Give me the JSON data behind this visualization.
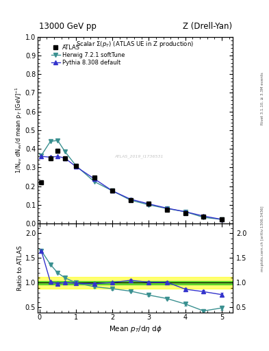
{
  "title_top": "13000 GeV pp",
  "title_right": "Z (Drell-Yan)",
  "main_title": "Scalar $\\Sigma(p_T)$ (ATLAS UE in Z production)",
  "ylabel_main": "1/N$_{ev}$ dN$_{ev}$/d mean p$_T$ [GeV]$^{-1}$",
  "ylabel_ratio": "Ratio to ATLAS",
  "xlabel": "Mean $p_T$/d$\\eta$ d$\\phi$",
  "right_label_top": "Rivet 3.1.10, ≥ 3.3M events",
  "right_label_bottom": "mcplots.cern.ch [arXiv:1306.3436]",
  "watermark": "ATLAS_2019_I1736531",
  "atlas_x": [
    0.05,
    0.3,
    0.5,
    0.7,
    1.0,
    1.5,
    2.0,
    2.5,
    3.0,
    3.5,
    4.0,
    4.5,
    5.0
  ],
  "atlas_y": [
    0.22,
    0.35,
    0.39,
    0.35,
    0.31,
    0.245,
    0.175,
    0.125,
    0.105,
    0.075,
    0.055,
    0.038,
    0.022
  ],
  "atlas_yerr": [
    0.01,
    0.01,
    0.01,
    0.01,
    0.01,
    0.008,
    0.007,
    0.006,
    0.005,
    0.004,
    0.003,
    0.003,
    0.002
  ],
  "herwig_x": [
    0.05,
    0.3,
    0.5,
    0.7,
    1.0,
    1.5,
    2.0,
    2.5,
    3.0,
    3.5,
    4.0,
    4.5,
    5.0
  ],
  "herwig_y": [
    0.365,
    0.44,
    0.445,
    0.385,
    0.31,
    0.225,
    0.175,
    0.125,
    0.1,
    0.08,
    0.063,
    0.033,
    0.022
  ],
  "herwig_color": "#3a9090",
  "pythia_x": [
    0.05,
    0.3,
    0.5,
    0.7,
    1.0,
    1.5,
    2.0,
    2.5,
    3.0,
    3.5,
    4.0,
    4.5,
    5.0
  ],
  "pythia_y": [
    0.36,
    0.355,
    0.36,
    0.35,
    0.305,
    0.24,
    0.175,
    0.13,
    0.105,
    0.082,
    0.063,
    0.04,
    0.022
  ],
  "pythia_color": "#3333cc",
  "herwig_ratio": [
    1.65,
    1.37,
    1.2,
    1.1,
    1.0,
    0.92,
    0.88,
    0.83,
    0.75,
    0.68,
    0.57,
    0.43,
    0.49
  ],
  "pythia_ratio": [
    1.65,
    1.015,
    0.985,
    1.005,
    0.99,
    0.98,
    1.005,
    1.05,
    1.01,
    1.01,
    0.87,
    0.82,
    0.76
  ],
  "herwig_ratio_err": [
    0.03,
    0.02,
    0.02,
    0.02,
    0.02,
    0.02,
    0.02,
    0.02,
    0.02,
    0.02,
    0.03,
    0.04,
    0.04
  ],
  "pythia_ratio_err": [
    0.03,
    0.02,
    0.02,
    0.02,
    0.02,
    0.02,
    0.02,
    0.02,
    0.02,
    0.02,
    0.03,
    0.03,
    0.04
  ],
  "band_green_low": 0.96,
  "band_green_high": 1.04,
  "band_yellow_low": 0.88,
  "band_yellow_high": 1.12,
  "main_ylim": [
    0.0,
    1.0
  ],
  "main_yticks": [
    0.0,
    0.1,
    0.2,
    0.3,
    0.4,
    0.5,
    0.6,
    0.7,
    0.8,
    0.9,
    1.0
  ],
  "ratio_ylim": [
    0.4,
    2.2
  ],
  "ratio_yticks": [
    0.5,
    1.0,
    1.5,
    2.0
  ],
  "xlim": [
    -0.05,
    5.3
  ],
  "xticks": [
    0,
    1,
    2,
    3,
    4,
    5
  ],
  "atlas_color": "#000000",
  "legend_entries": [
    "ATLAS",
    "Herwig 7.2.1 softTune",
    "Pythia 8.308 default"
  ]
}
